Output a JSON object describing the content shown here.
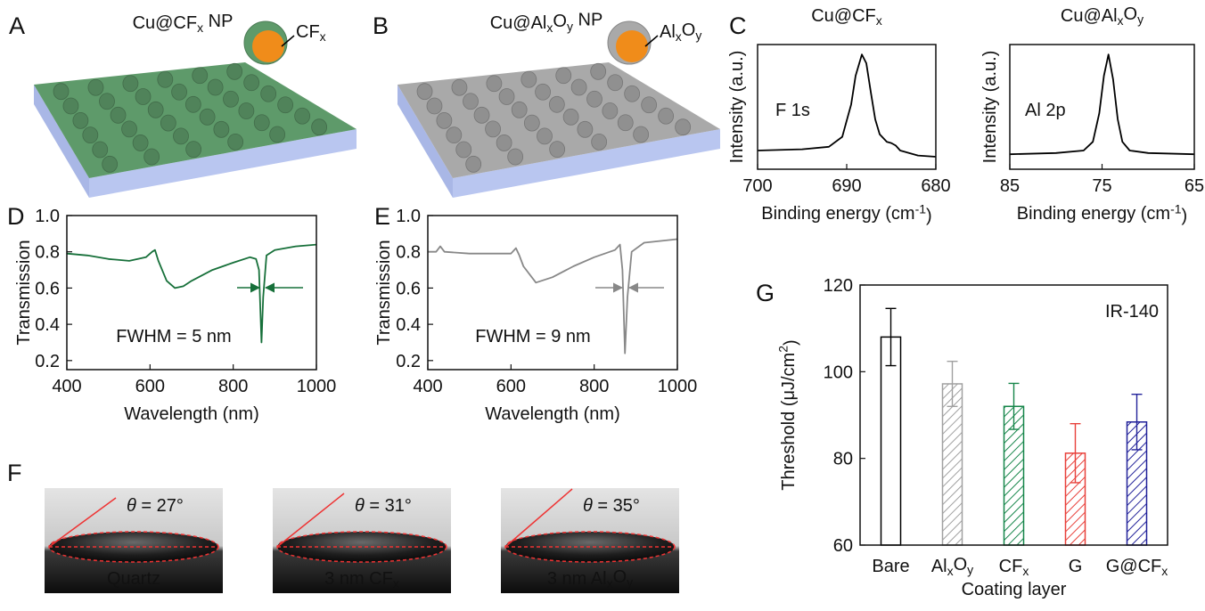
{
  "panel_labels": [
    "A",
    "B",
    "C",
    "D",
    "E",
    "F",
    "G"
  ],
  "illustrations": [
    {
      "title": [
        {
          "text": "Cu@CF"
        },
        {
          "text": "x",
          "style": "sub"
        },
        {
          "text": " NP"
        }
      ],
      "shell_label": [
        {
          "text": "CF"
        },
        {
          "text": "x",
          "style": "sub"
        }
      ],
      "color": "#5e9a6a"
    },
    {
      "title": [
        {
          "text": "Cu@Al"
        },
        {
          "text": "x",
          "style": "sub"
        },
        {
          "text": "O"
        },
        {
          "text": "y",
          "style": "sub"
        },
        {
          "text": " NP"
        }
      ],
      "shell_label": [
        {
          "text": "Al"
        },
        {
          "text": "x",
          "style": "sub"
        },
        {
          "text": "O"
        },
        {
          "text": "y",
          "style": "sub"
        }
      ],
      "color": "#a9a9a9"
    }
  ],
  "contact_angles": [
    {
      "angle": [
        {
          "text": "θ",
          "style": "italic"
        },
        {
          "text": " = 27°"
        }
      ],
      "substrate": [
        {
          "text": "Quartz"
        }
      ]
    },
    {
      "angle": [
        {
          "text": "θ",
          "style": "italic"
        },
        {
          "text": " = 31°"
        }
      ],
      "substrate": [
        {
          "text": "3 nm CF"
        },
        {
          "text": "x",
          "style": "sub"
        }
      ]
    },
    {
      "angle": [
        {
          "text": "θ",
          "style": "italic"
        },
        {
          "text": " = 35°"
        }
      ],
      "substrate": [
        {
          "text": "3 nm Al"
        },
        {
          "text": "x",
          "style": "sub"
        },
        {
          "text": "O"
        },
        {
          "text": "y",
          "style": "sub"
        }
      ]
    }
  ],
  "chart_data": [
    {
      "type": "line",
      "title": [
        {
          "text": "Cu@CF"
        },
        {
          "text": "x",
          "style": "sub"
        }
      ],
      "xlabel": [
        {
          "text": "Binding energy (cm"
        },
        {
          "text": "-1",
          "style": "sup"
        },
        {
          "text": ")"
        }
      ],
      "ylabel": [
        {
          "text": "Intensity (a.u.)"
        }
      ],
      "annotation": [
        {
          "text": "F 1s"
        }
      ],
      "x": [
        700,
        695,
        692,
        690.5,
        689.5,
        689,
        688.3,
        687.8,
        687.3,
        686.8,
        686.3,
        685.5,
        685,
        684.5,
        684,
        682,
        680
      ],
      "values": [
        0.15,
        0.16,
        0.18,
        0.26,
        0.52,
        0.75,
        0.92,
        0.85,
        0.62,
        0.4,
        0.28,
        0.22,
        0.21,
        0.19,
        0.15,
        0.11,
        0.1
      ],
      "color": "#000000",
      "xlim": [
        700,
        680
      ],
      "ylim": [
        0,
        1
      ],
      "xticks": [
        700,
        690,
        680
      ]
    },
    {
      "type": "line",
      "title": [
        {
          "text": "Cu@Al"
        },
        {
          "text": "x",
          "style": "sub"
        },
        {
          "text": "O"
        },
        {
          "text": "y",
          "style": "sub"
        }
      ],
      "xlabel": [
        {
          "text": "Binding energy (cm"
        },
        {
          "text": "-1",
          "style": "sup"
        },
        {
          "text": ")"
        }
      ],
      "ylabel": [
        {
          "text": "Intensity (a.u.)"
        }
      ],
      "annotation": [
        {
          "text": "Al 2p"
        }
      ],
      "x": [
        85,
        80,
        77,
        76,
        75.3,
        74.8,
        74.3,
        73.8,
        73.3,
        72.8,
        72,
        70,
        65
      ],
      "values": [
        0.12,
        0.13,
        0.15,
        0.22,
        0.45,
        0.75,
        0.92,
        0.72,
        0.4,
        0.22,
        0.15,
        0.13,
        0.12
      ],
      "color": "#000000",
      "xlim": [
        85,
        65
      ],
      "ylim": [
        0,
        1
      ],
      "xticks": [
        85,
        75,
        65
      ]
    },
    {
      "type": "line",
      "xlabel": [
        {
          "text": "Wavelength (nm)"
        }
      ],
      "ylabel": [
        {
          "text": "Transmission"
        }
      ],
      "annotation": [
        {
          "text": "FWHM = 5 nm"
        }
      ],
      "x": [
        400,
        450,
        500,
        550,
        590,
        605,
        612,
        620,
        640,
        660,
        680,
        700,
        750,
        800,
        840,
        855,
        862,
        868,
        872,
        880,
        900,
        950,
        1000
      ],
      "values": [
        0.79,
        0.78,
        0.76,
        0.75,
        0.77,
        0.8,
        0.81,
        0.75,
        0.64,
        0.6,
        0.61,
        0.64,
        0.7,
        0.74,
        0.77,
        0.76,
        0.7,
        0.3,
        0.55,
        0.78,
        0.81,
        0.83,
        0.84
      ],
      "color": "#17703a",
      "xlim": [
        400,
        1000
      ],
      "ylim": [
        0.15,
        1
      ],
      "xticks": [
        400,
        600,
        800,
        1000
      ],
      "yticks": [
        0.2,
        0.4,
        0.6,
        0.8,
        {
          "value": 1,
          "label": "1.0"
        }
      ]
    },
    {
      "type": "line",
      "xlabel": [
        {
          "text": "Wavelength (nm)"
        }
      ],
      "ylabel": [
        {
          "text": "Transmission"
        }
      ],
      "annotation": [
        {
          "text": "FWHM = 9 nm"
        }
      ],
      "x": [
        400,
        420,
        430,
        440,
        500,
        560,
        600,
        612,
        620,
        630,
        660,
        700,
        750,
        800,
        850,
        862,
        868,
        874,
        880,
        890,
        920,
        1000
      ],
      "values": [
        0.8,
        0.8,
        0.83,
        0.8,
        0.79,
        0.79,
        0.79,
        0.82,
        0.78,
        0.72,
        0.63,
        0.66,
        0.72,
        0.77,
        0.81,
        0.84,
        0.7,
        0.24,
        0.55,
        0.8,
        0.85,
        0.87
      ],
      "color": "#888888",
      "xlim": [
        400,
        1000
      ],
      "ylim": [
        0.15,
        1
      ],
      "xticks": [
        400,
        600,
        800,
        1000
      ],
      "yticks": [
        0.2,
        0.4,
        0.6,
        0.8,
        {
          "value": 1,
          "label": "1.0"
        }
      ]
    },
    {
      "type": "bar",
      "xlabel": [
        {
          "text": "Coating layer"
        }
      ],
      "ylabel": [
        {
          "text": "Threshold (μJ/cm"
        },
        {
          "text": "2",
          "style": "sup"
        },
        {
          "text": ")"
        }
      ],
      "annotation": [
        {
          "text": "IR-140"
        }
      ],
      "categories": [
        [
          {
            "text": "Bare"
          }
        ],
        [
          {
            "text": "Al"
          },
          {
            "text": "x",
            "style": "sub"
          },
          {
            "text": "O"
          },
          {
            "text": "y",
            "style": "sub"
          }
        ],
        [
          {
            "text": "CF"
          },
          {
            "text": "x",
            "style": "sub"
          }
        ],
        [
          {
            "text": "G"
          }
        ],
        [
          {
            "text": "G@CF"
          },
          {
            "text": "x",
            "style": "sub"
          }
        ]
      ],
      "values": [
        108,
        97.2,
        92,
        81.2,
        88.4
      ],
      "errors": [
        6.6,
        5.2,
        5.3,
        6.8,
        6.4
      ],
      "colors": [
        "#000000",
        "#a0a0a0",
        "#16864a",
        "#e8403a",
        "#22229a"
      ],
      "label_colors": [
        "#000000",
        "#a0a0a0",
        "#16864a",
        "#e8403a",
        "#22229a"
      ],
      "hatched": [
        false,
        true,
        true,
        true,
        true
      ],
      "ylim": [
        60,
        120
      ],
      "yticks": [
        60,
        80,
        100,
        120
      ]
    }
  ]
}
